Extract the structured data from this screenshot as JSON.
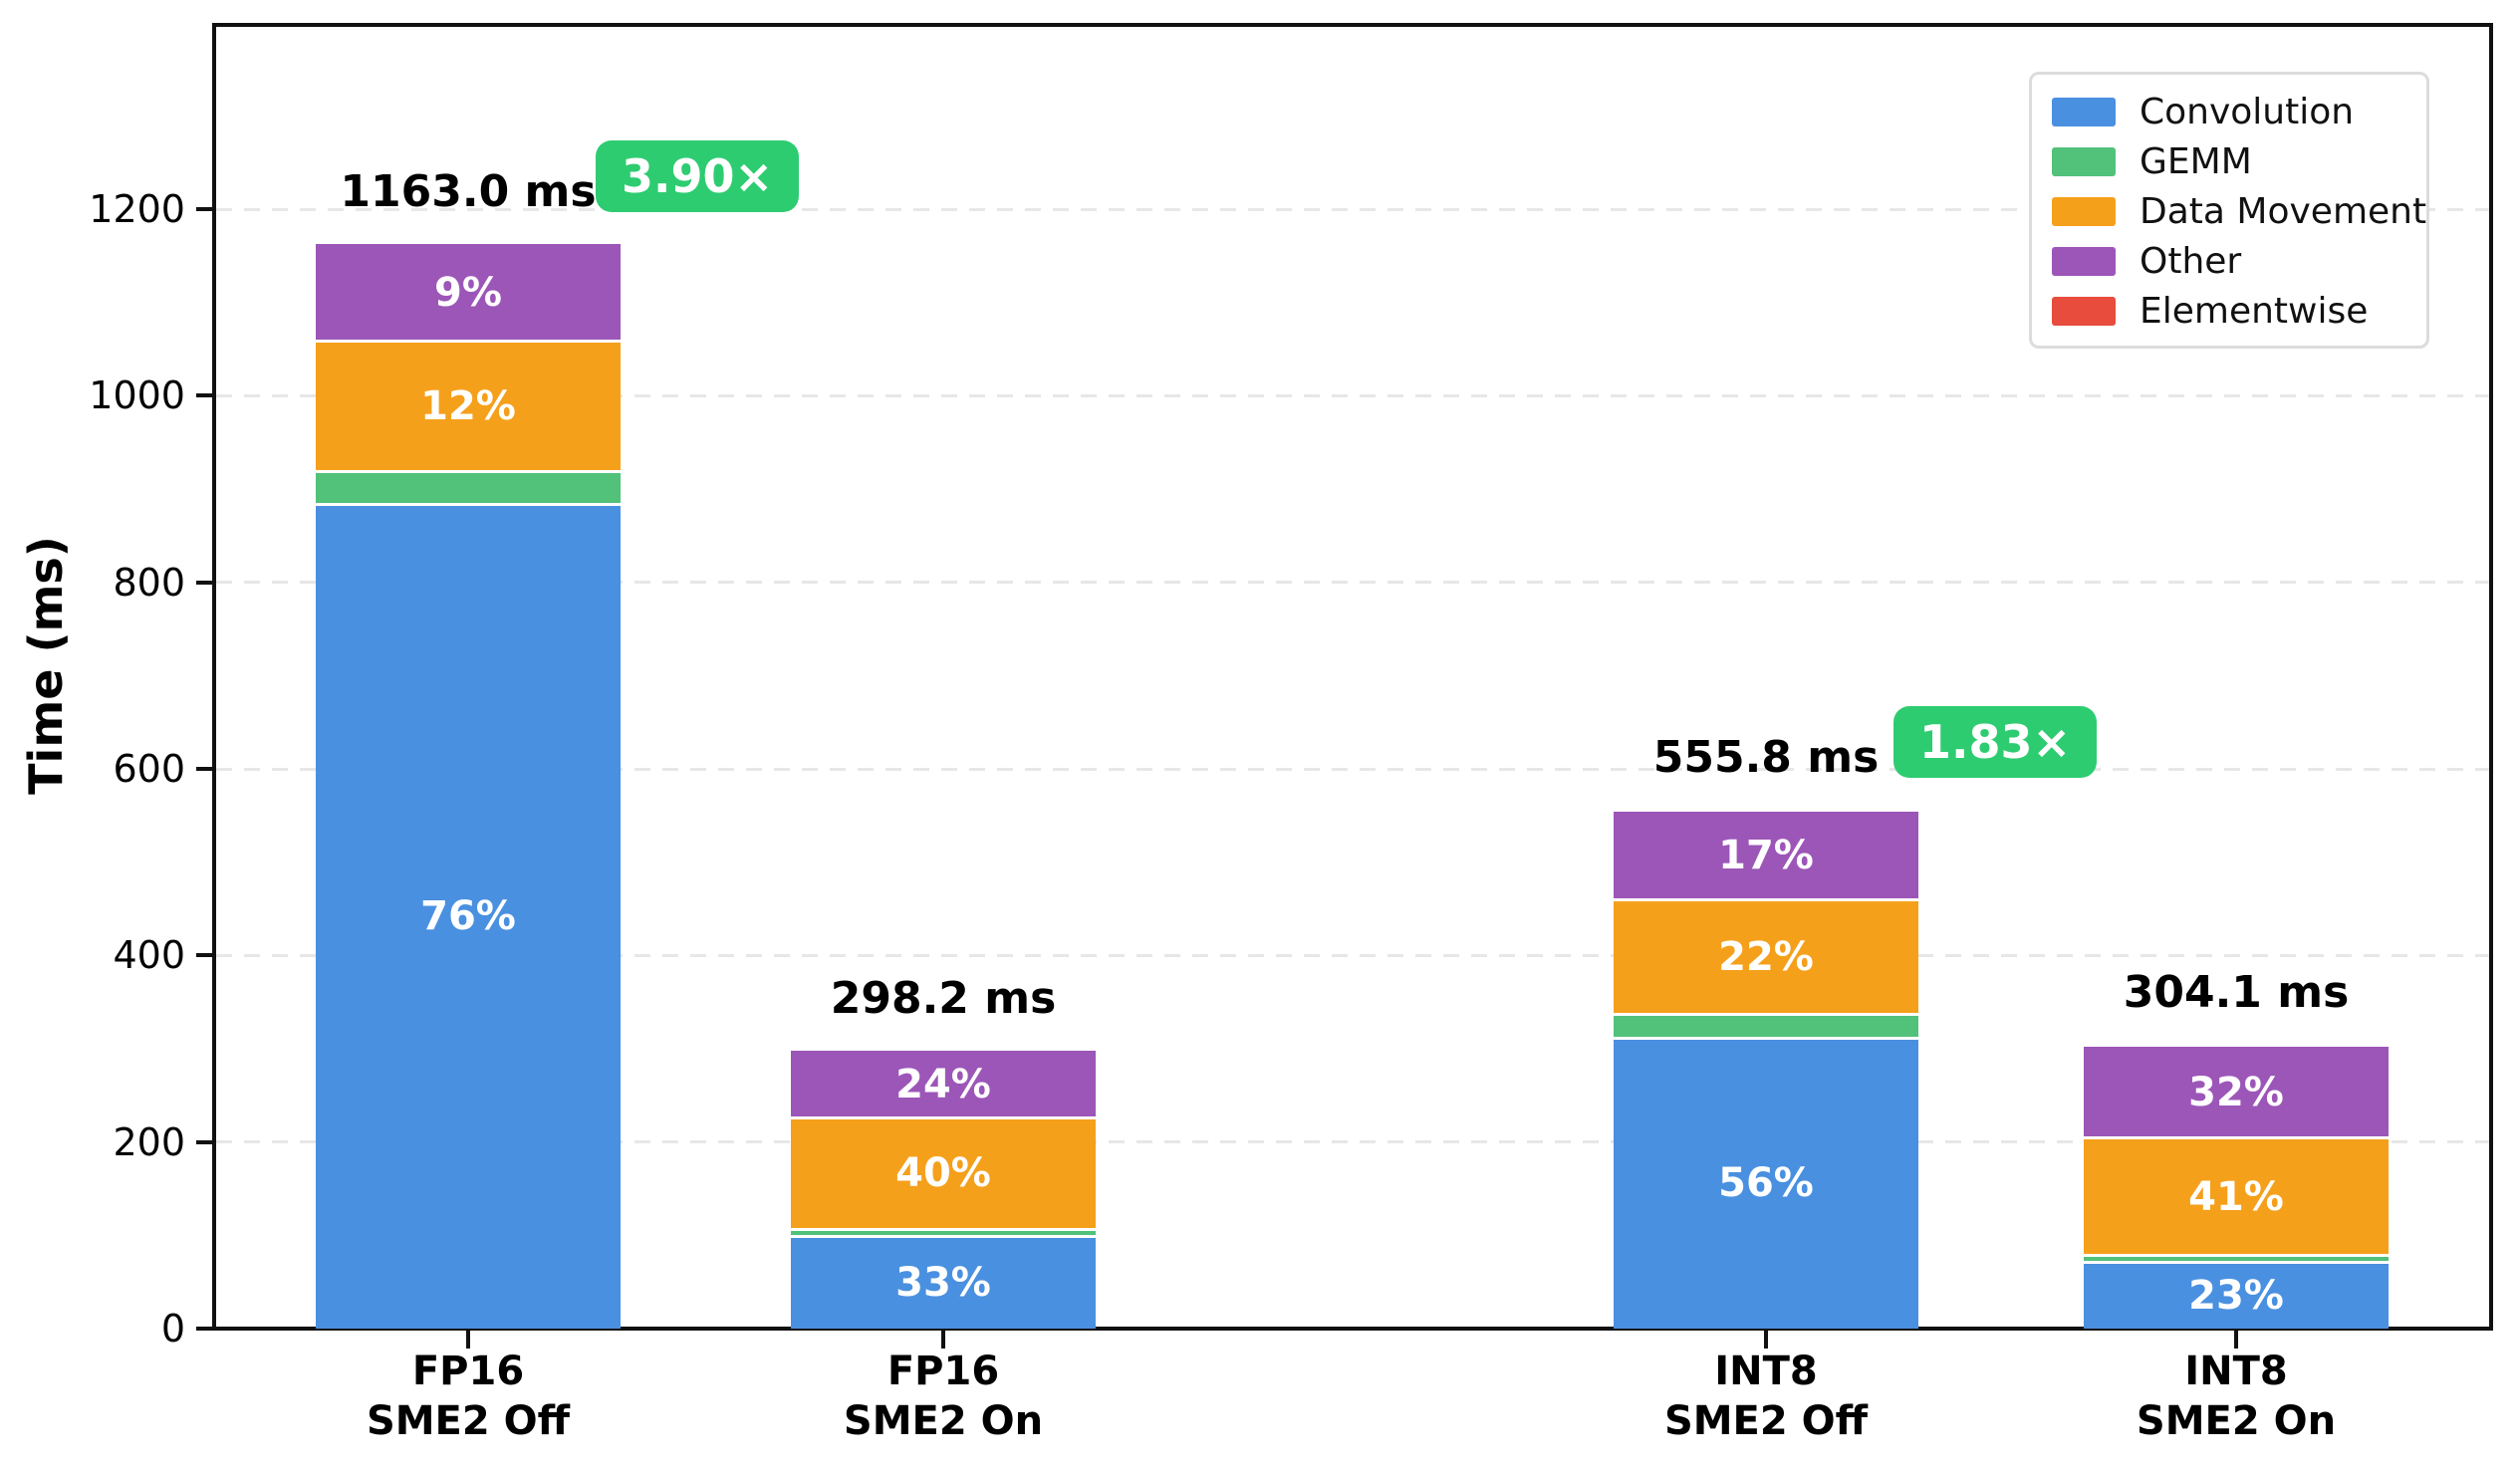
{
  "figure": {
    "background": "#ffffff",
    "spine_color": "#111111",
    "grid_color": "#e7e7e7"
  },
  "chart_data": {
    "type": "bar",
    "stacked": true,
    "title": "",
    "xlabel": "",
    "ylabel": "Time (ms)",
    "ylim": [
      0,
      1400
    ],
    "grid": "horizontal dashed lines every 200 ms",
    "legend_position": "upper right",
    "yticks": {
      "values": [
        0,
        200,
        400,
        600,
        800,
        1000,
        1200
      ],
      "labels": [
        "0",
        "200",
        "400",
        "600",
        "800",
        "1000",
        "1200"
      ]
    },
    "categories": [
      "FP16 SME2 Off",
      "FP16 SME2 On",
      "INT8 SME2 Off",
      "INT8 SME2 On"
    ],
    "category_lines": [
      [
        "FP16",
        "SME2 Off"
      ],
      [
        "FP16",
        "SME2 On"
      ],
      [
        "INT8",
        "SME2 Off"
      ],
      [
        "INT8",
        "SME2 On"
      ]
    ],
    "series": [
      {
        "name": "Convolution",
        "color": "#4a90e0",
        "values_ms": [
          883.9,
          98.4,
          311.2,
          71.2
        ],
        "segment_labels": [
          "76%",
          "33%",
          "56%",
          "23%"
        ]
      },
      {
        "name": "GEMM",
        "color": "#52c17a",
        "values_ms": [
          34.8,
          8.3,
          26.0,
          7.0
        ],
        "segment_labels": [
          "",
          "",
          "",
          ""
        ]
      },
      {
        "name": "Data Movement",
        "color": "#f5a01b",
        "values_ms": [
          139.6,
          119.3,
          122.3,
          125.9
        ],
        "segment_labels": [
          "12%",
          "40%",
          "22%",
          "41%"
        ]
      },
      {
        "name": "Other",
        "color": "#9c56b8",
        "values_ms": [
          104.7,
          71.6,
          94.5,
          98.5
        ],
        "segment_labels": [
          "9%",
          "24%",
          "17%",
          "32%"
        ]
      },
      {
        "name": "Elementwise",
        "color": "#e74c3c",
        "values_ms": [
          0.0,
          0.6,
          1.8,
          1.5
        ],
        "segment_labels": [
          "",
          "",
          "",
          ""
        ]
      }
    ],
    "totals": [
      {
        "category": "FP16 SME2 Off",
        "value_ms": 1163.0,
        "label": "1163.0 ms"
      },
      {
        "category": "FP16 SME2 On",
        "value_ms": 298.2,
        "label": "298.2 ms"
      },
      {
        "category": "INT8 SME2 Off",
        "value_ms": 555.8,
        "label": "555.8 ms"
      },
      {
        "category": "INT8 SME2 On",
        "value_ms": 304.1,
        "label": "304.1 ms"
      }
    ],
    "speedup_badges": [
      {
        "bar_index": 0,
        "label": "3.90×",
        "color": "#2ecc71",
        "text_color": "#ffffff"
      },
      {
        "bar_index": 2,
        "label": "1.83×",
        "color": "#2ecc71",
        "text_color": "#ffffff"
      }
    ],
    "legend_entries": [
      "Convolution",
      "GEMM",
      "Data Movement",
      "Other",
      "Elementwise"
    ]
  }
}
